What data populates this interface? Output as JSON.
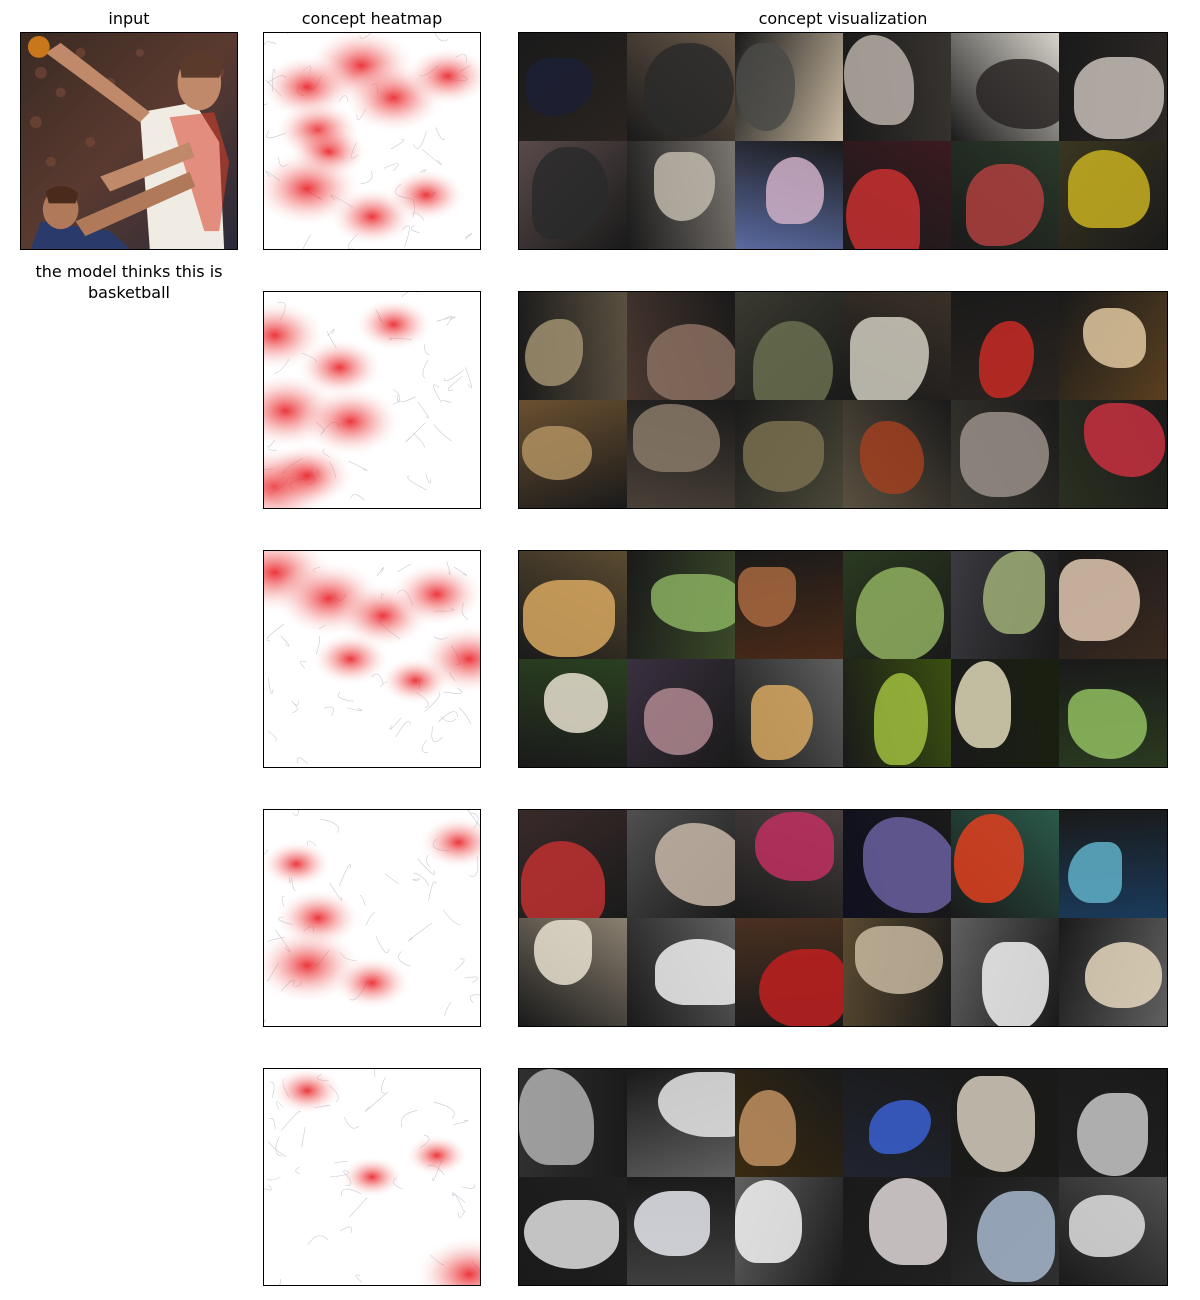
{
  "columns": {
    "input": "input",
    "heatmap": "concept heatmap",
    "visualization": "concept visualization"
  },
  "prediction_caption": "the model thinks this is basketball",
  "concepts": [
    {
      "heat": [
        [
          0.45,
          0.15,
          0.9
        ],
        [
          0.2,
          0.25,
          0.7
        ],
        [
          0.6,
          0.3,
          0.8
        ],
        [
          0.25,
          0.45,
          0.6
        ],
        [
          0.3,
          0.55,
          0.5
        ],
        [
          0.2,
          0.72,
          0.9
        ],
        [
          0.5,
          0.85,
          0.6
        ],
        [
          0.75,
          0.75,
          0.5
        ],
        [
          0.85,
          0.2,
          0.6
        ]
      ],
      "tiles": [
        [
          "#2a2420",
          "#1c2035"
        ],
        [
          "#6b5a4a",
          "#2a2a2a"
        ],
        [
          "#c9b9a0",
          "#4a4a48"
        ],
        [
          "#383430",
          "#b8b0a8"
        ],
        [
          "#d8d4cc",
          "#2a2624"
        ],
        [
          "#2c2826",
          "#c8c0b8"
        ],
        [
          "#5a4a4a",
          "#2a2a2a"
        ],
        [
          "#7a7570",
          "#c0b8ac"
        ],
        [
          "#5a6aa0",
          "#d0b0c8"
        ],
        [
          "#3a1a20",
          "#c83030"
        ],
        [
          "#2a3a2a",
          "#b04040"
        ],
        [
          "#3a3620",
          "#c8b020"
        ]
      ]
    },
    {
      "heat": [
        [
          0.05,
          0.2,
          0.8
        ],
        [
          0.1,
          0.55,
          0.9
        ],
        [
          0.05,
          0.9,
          1.0
        ],
        [
          0.4,
          0.6,
          0.8
        ],
        [
          0.35,
          0.35,
          0.6
        ],
        [
          0.6,
          0.15,
          0.5
        ],
        [
          0.2,
          0.85,
          0.7
        ]
      ],
      "tiles": [
        [
          "#5a5040",
          "#a09070"
        ],
        [
          "#4a3830",
          "#8a7060"
        ],
        [
          "#3a3a30",
          "#6a7050"
        ],
        [
          "#3a3028",
          "#d0ccc0"
        ],
        [
          "#2a2420",
          "#c82a24"
        ],
        [
          "#5a4020",
          "#e0c8a0"
        ],
        [
          "#6a5030",
          "#b09060"
        ],
        [
          "#4a4038",
          "#8a7a68"
        ],
        [
          "#4a4838",
          "#7a7050"
        ],
        [
          "#5a5040",
          "#a04020"
        ],
        [
          "#3a3830",
          "#9a9088"
        ],
        [
          "#2a3020",
          "#c83040"
        ]
      ]
    },
    {
      "heat": [
        [
          0.05,
          0.1,
          1.0
        ],
        [
          0.3,
          0.22,
          0.9
        ],
        [
          0.55,
          0.3,
          0.7
        ],
        [
          0.8,
          0.2,
          0.7
        ],
        [
          0.95,
          0.5,
          0.8
        ],
        [
          0.4,
          0.5,
          0.5
        ],
        [
          0.7,
          0.6,
          0.4
        ]
      ],
      "tiles": [
        [
          "#5a4a30",
          "#d8a860"
        ],
        [
          "#3a4a28",
          "#8ab060"
        ],
        [
          "#4a2a18",
          "#a86840"
        ],
        [
          "#2a3a20",
          "#90b060"
        ],
        [
          "#3a3a40",
          "#a0b078"
        ],
        [
          "#3a2a20",
          "#e0c8b0"
        ],
        [
          "#2a4020",
          "#e8e0d0"
        ],
        [
          "#3a3040",
          "#b08890"
        ],
        [
          "#606060",
          "#d8a860"
        ],
        [
          "#3a5010",
          "#a0c040"
        ],
        [
          "#1a2010",
          "#e0d8b8"
        ],
        [
          "#2a3a20",
          "#90c060"
        ]
      ]
    },
    {
      "heat": [
        [
          0.25,
          0.5,
          0.6
        ],
        [
          0.2,
          0.72,
          0.9
        ],
        [
          0.5,
          0.8,
          0.5
        ],
        [
          0.9,
          0.15,
          0.5
        ],
        [
          0.15,
          0.25,
          0.4
        ]
      ],
      "tiles": [
        [
          "#3a2a2a",
          "#c03030"
        ],
        [
          "#505050",
          "#c8b8a8"
        ],
        [
          "#4a4040",
          "#c03060"
        ],
        [
          "#101020",
          "#6a60a0"
        ],
        [
          "#2a5a4a",
          "#e04020"
        ],
        [
          "#1a3a5a",
          "#60b0c8"
        ],
        [
          "#8a8070",
          "#e8e0d0"
        ],
        [
          "#606060",
          "#f0f0f0"
        ],
        [
          "#4a3020",
          "#c02020"
        ],
        [
          "#5a4a30",
          "#c8b8a0"
        ],
        [
          "#606060",
          "#f2f2f2"
        ],
        [
          "#606060",
          "#e8d8c0"
        ]
      ]
    },
    {
      "heat": [
        [
          0.95,
          0.95,
          0.9
        ],
        [
          0.2,
          0.1,
          0.4
        ],
        [
          0.5,
          0.5,
          0.3
        ],
        [
          0.8,
          0.4,
          0.3
        ]
      ],
      "tiles": [
        [
          "#303030",
          "#b0b0b0"
        ],
        [
          "#606060",
          "#e8e8e8"
        ],
        [
          "#3a2a10",
          "#c09060"
        ],
        [
          "#202430",
          "#3a60d0"
        ],
        [
          "#1a1a18",
          "#d8d0c0"
        ],
        [
          "#202020",
          "#c8c8c8"
        ],
        [
          "#202020",
          "#e0e0e0"
        ],
        [
          "#404040",
          "#e8e8f0"
        ],
        [
          "#606060",
          "#f4f4f4"
        ],
        [
          "#202020",
          "#e0d8d8"
        ],
        [
          "#303030",
          "#a8b8d0"
        ],
        [
          "#505050",
          "#e0e0e0"
        ]
      ]
    }
  ]
}
